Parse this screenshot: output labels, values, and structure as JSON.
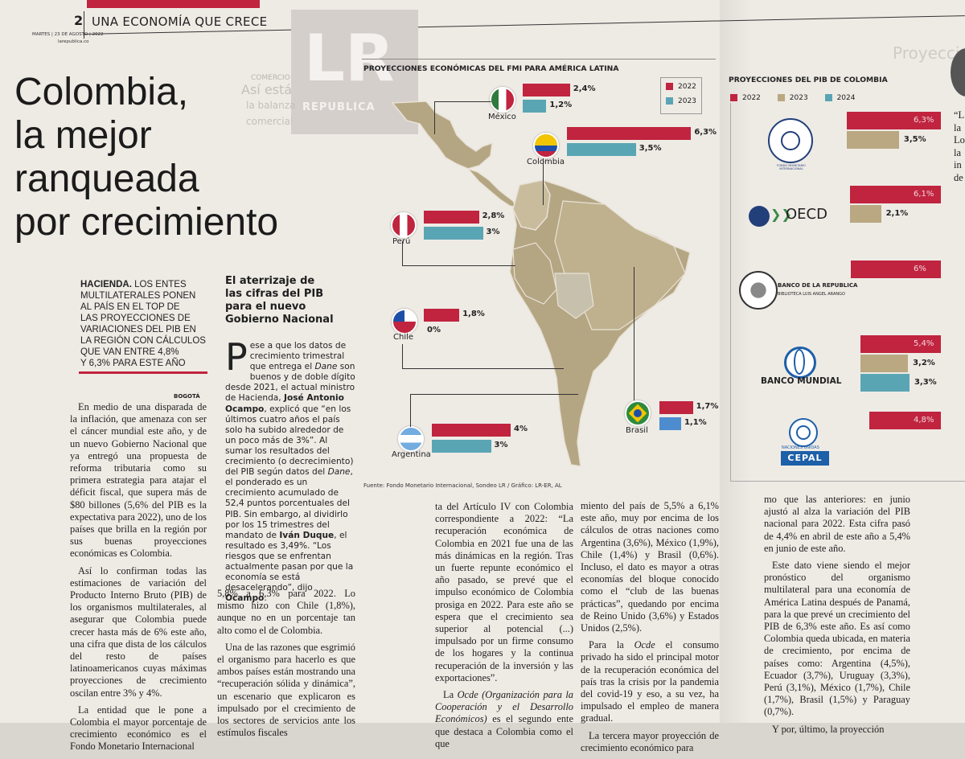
{
  "header": {
    "page_number": "2",
    "section": "UNA ECONOMÍA QUE CRECE",
    "dateline": "MARTES | 23 DE AGOSTO | 2022",
    "site": "larepublica.co"
  },
  "background": {
    "logo": "LR",
    "logo_sub": "REPUBLICA",
    "bg_text_1": "COMERCIO",
    "bg_text_2": "Así está",
    "bg_text_3": "la balanza",
    "bg_text_4": "comercial"
  },
  "article": {
    "headline_1": "Colombia,",
    "headline_2": "la mejor",
    "headline_3": "ranqueada",
    "headline_4": "por crecimiento",
    "lead_bold": "HACIENDA.",
    "lead_1": " LOS ENTES",
    "lead_2": "MULTILATERALES PONEN",
    "lead_3": "AL PAÍS EN EL TOP DE",
    "lead_4": "LAS PROYECCIONES DE",
    "lead_5": "VARIACIONES DEL PIB EN",
    "lead_6": "LA REGIÓN CON CÁLCULOS",
    "lead_7": "QUE VAN ENTRE 4,8%",
    "lead_8": "Y 6,3% PARA ESTE AÑO",
    "city": "BOGOTÁ",
    "col1_p1": "En medio de una disparada de la inflación, que amenaza con ser el cáncer mundial este año, y de un nuevo Gobierno Nacional que ya entregó una propuesta de reforma tributaria como su primera estrategia para atajar el déficit fiscal, que supera más de $80 billones (5,6% del PIB es la expectativa para 2022), uno de los países que brilla en la región por sus buenas proyecciones económicas es Colombia.",
    "col1_p2": "Así lo confirman todas las estimaciones de variación del Producto Interno Bruto (PIB) de los organismos multilaterales, al asegurar que Colombia puede crecer hasta más de 6% este año, una cifra que dista de los cálculos del resto de países latinoamericanos cuyas máximas proyecciones de crecimiento oscilan entre 3% y 4%.",
    "col1_p3": "La entidad que le pone a Colombia el mayor porcentaje de crecimiento económico es el Fondo Monetario Internacional",
    "subhead_1": "El aterrizaje de",
    "subhead_2": "las cifras del PIB",
    "subhead_3": "para el nuevo",
    "subhead_4": "Gobierno Nacional",
    "dropcap": "P",
    "col2_p1a": "ese a que los datos de crecimiento trimestral que entrega el ",
    "col2_dane": "Dane",
    "col2_p1b": " son buenos y de doble dígito desde 2021, el actual ministro de Hacienda, ",
    "col2_name1": "José Antonio Ocampo",
    "col2_p1c": ", explicó que “en los últimos cuatro años el país solo ha subido alrededor de un poco más de 3%”. Al sumar los resultados del crecimiento (o decrecimiento) del PIB según datos del ",
    "col2_dane2": "Dane",
    "col2_p1d": ", el ponderado es un crecimiento acumulado de 52,4 puntos porcentuales del PIB. Sin embargo, al dividirlo por los 15 trimestres del mandato de ",
    "col2_name2": "Iván Duque",
    "col2_p1e": ", el resultado es 3,49%. “Los riesgos que se enfrentan actualmente pasan por que la economía se está desacelerando”, dijo ",
    "col2_name3": "Ocampo",
    "col2_p1f": ".",
    "col2_p2": "5,8% a 6,3% para 2022. Lo mismo hizo con Chile (1,8%), aunque no en un porcentaje tan alto como el de Colombia.",
    "col2_p3": "Una de las razones que esgrimió el organismo para hacerlo es que ambos países están mostrando una “recuperación sólida y dinámica”, un escenario que explicaron es impulsado por el crecimiento de los sectores de servicios ante los estímulos fiscales",
    "col3_p1": "ta del Artículo IV con Colombia correspondiente a 2022: “La recuperación económica de Colombia en 2021 fue una de las más dinámicas en la región. Tras un fuerte repunte económico el año pasado, se prevé que el impulso económico de Colombia prosiga en 2022. Para este año se espera que el crecimiento sea superior al potencial (...) impulsado por un firme consumo de los hogares y la continua recuperación de la inversión y las exportaciones”.",
    "col3_p2a": "La ",
    "col3_ocde": "Ocde (Organización para la Cooperación y el Desarrollo Económicos)",
    "col3_p2b": " es el segundo ente que destaca a Colombia como el que",
    "col4_p1": "miento del país de 5,5% a 6,1% este año, muy por encima de los cálculos de otras naciones como Argentina (3,6%), México (1,9%), Chile (1,4%) y Brasil (0,6%). Incluso, el dato es mayor a otras economías del bloque conocido como el “club de las buenas prácticas”, quedando por encima de Reino Unido (3,6%) y Estados Unidos (2,5%).",
    "col4_p2a": "Para la ",
    "col4_ocde": "Ocde",
    "col4_p2b": " el consumo privado ha sido el principal motor de la recuperación económica del país tras la crisis por la pandemia del covid-19 y eso, a su vez, ha impulsado el empleo de manera gradual.",
    "col4_p3": "La tercera mayor proyección de crecimiento económico para",
    "col5_p1": "mo que las anteriores: en junio ajustó al alza la variación del PIB nacional para 2022. Esta cifra pasó de 4,4% en abril de este año a 5,4% en junio de este año.",
    "col5_p2": "Este dato viene siendo el mejor pronóstico del organismo multilateral para una economía de América Latina después de Panamá, para la que prevé un crecimiento del PIB de 6,3% este año. Es así como Colombia queda ubicada, en materia de crecimiento, por encima de países como: Argentina (4,5%), Ecuador (3,7%), Uruguay (3,3%), Perú (3,1%), México (1,7%), Chile (1,7%), Brasil (1,5%) y Paraguay (0,7%).",
    "col5_p3": "Y por, último, la proyección"
  },
  "chart_data": [
    {
      "type": "bar",
      "title": "PROYECCIONES ECONÓMICAS DEL FMI PARA AMÉRICA LATINA",
      "legend": [
        "2022",
        "2023"
      ],
      "legend_placement": "top-right",
      "colors": [
        "#c0243f",
        "#5aa5b4"
      ],
      "categories": [
        "México",
        "Colombia",
        "Perú",
        "Chile",
        "Brasil",
        "Argentina"
      ],
      "series": [
        {
          "name": "2022",
          "values": [
            2.4,
            6.3,
            2.8,
            1.8,
            1.7,
            4
          ],
          "labels": [
            "2,4%",
            "6,3%",
            "2,8%",
            "1,8%",
            "1,7%",
            "4%"
          ]
        },
        {
          "name": "2023",
          "values": [
            1.2,
            3.5,
            3,
            0,
            1.1,
            3
          ],
          "labels": [
            "1,2%",
            "3,5%",
            "3%",
            "0%",
            "1,1%",
            "3%"
          ]
        }
      ],
      "source": "Fuente: Fondo Monetario Internacional, Sondeo LR / Gráfico: LR-ER, AL"
    },
    {
      "type": "bar",
      "title": "PROYECCIONES DEL PIB DE COLOMBIA",
      "legend": [
        "2022",
        "2023",
        "2024"
      ],
      "legend_placement": "top-left",
      "colors": [
        "#c0243f",
        "#b9a882",
        "#5aa5b4"
      ],
      "categories": [
        "FONDO MONETARIO INTERNACIONAL",
        "OECD",
        "BANCO DE LA REPUBLICA",
        "BANCO MUNDIAL",
        "CEPAL"
      ],
      "series": [
        {
          "name": "2022",
          "values": [
            6.3,
            6.1,
            6,
            5.4,
            4.8
          ],
          "labels": [
            "6,3%",
            "6,1%",
            "6%",
            "5,4%",
            "4,8%"
          ]
        },
        {
          "name": "2023",
          "values": [
            3.5,
            2.1,
            null,
            3.2,
            null
          ],
          "labels": [
            "3,5%",
            "2,1%",
            "",
            "3,2%",
            ""
          ]
        },
        {
          "name": "2024",
          "values": [
            null,
            null,
            null,
            3.3,
            null
          ],
          "labels": [
            "",
            "",
            "",
            "3,3%",
            ""
          ]
        }
      ],
      "org_labels": {
        "oecd": "OECD",
        "banrep_1": "BANCO DE LA REPUBLICA",
        "banrep_2": "BIBLIOTECA LUIS ANGEL ARANGO",
        "wb": "BANCO MUNDIAL",
        "un": "NACIONES UNIDAS",
        "cepal": "CEPAL",
        "fmi": "FONDO MONETARIO INTERNACIONAL"
      }
    }
  ],
  "right_edge": {
    "bg_text": "Proyecciones",
    "snippet_1": "“L",
    "snippet_2": "la",
    "snippet_3": "Lo",
    "snippet_4": "la",
    "snippet_5": "in",
    "snippet_6": "de"
  }
}
